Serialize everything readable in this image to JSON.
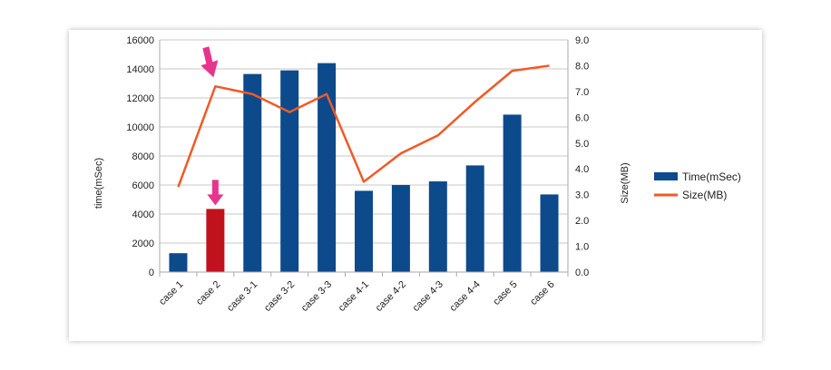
{
  "chart_data": {
    "type": "bar",
    "categories": [
      "case 1",
      "case 2",
      "case 3-1",
      "case 3-2",
      "case 3-3",
      "case 4-1",
      "case 4-2",
      "case 4-3",
      "case 4-4",
      "case 5",
      "case 6"
    ],
    "series": [
      {
        "name": "Time(mSec)",
        "type": "bar",
        "axis": "left",
        "color": "#0d4a8c",
        "values": [
          1300,
          4350,
          13650,
          13900,
          14400,
          5600,
          6000,
          6250,
          7350,
          10850,
          5350
        ]
      },
      {
        "name": "Size(MB)",
        "type": "line",
        "axis": "right",
        "color": "#ef5a26",
        "values": [
          3.3,
          7.2,
          6.9,
          6.2,
          6.9,
          3.5,
          4.6,
          5.3,
          6.6,
          7.8,
          8.0
        ]
      }
    ],
    "highlight": {
      "category_index": 1,
      "bar_color": "#c0121d",
      "arrow_color": "#e8348c"
    },
    "xlabel": "",
    "ylabel": "time(mSec)",
    "y2label": "Size(MB)",
    "ylim": [
      0,
      16000
    ],
    "y2lim": [
      0,
      9.0
    ],
    "yticks": [
      "0",
      "2000",
      "4000",
      "6000",
      "8000",
      "10000",
      "12000",
      "14000",
      "16000"
    ],
    "y2ticks": [
      "0.0",
      "1.0",
      "2.0",
      "3.0",
      "4.0",
      "5.0",
      "6.0",
      "7.0",
      "8.0",
      "9.0"
    ],
    "grid": "horizontal",
    "legend_position": "right"
  }
}
